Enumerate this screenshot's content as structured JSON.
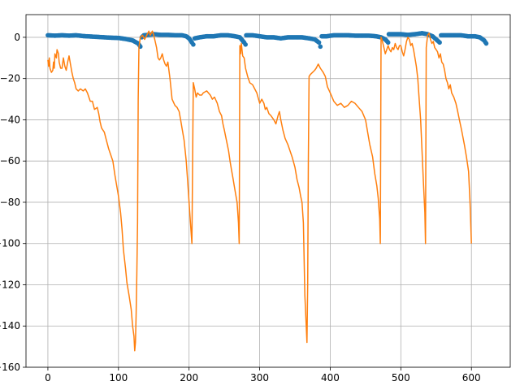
{
  "chart_data": {
    "type": "line",
    "title": "",
    "xlabel": "",
    "ylabel": "",
    "xlim": [
      -31,
      655
    ],
    "ylim": [
      -160,
      11
    ],
    "x_ticks": [
      0,
      100,
      200,
      300,
      400,
      500,
      600
    ],
    "y_ticks": [
      0,
      -20,
      -40,
      -60,
      -80,
      -100,
      -120,
      -140,
      -160
    ],
    "x_tick_labels": [
      "0",
      "100",
      "200",
      "300",
      "400",
      "500",
      "600"
    ],
    "y_tick_labels": [
      "0",
      "−20",
      "−40",
      "−60",
      "−80",
      "−100",
      "−120",
      "−140",
      "−160"
    ],
    "grid": true,
    "legend": "none",
    "series": [
      {
        "color": "#1f77b4",
        "style": "markers",
        "points": [
          [
            0,
            1
          ],
          [
            10,
            0.8
          ],
          [
            20,
            1
          ],
          [
            30,
            0.8
          ],
          [
            40,
            1
          ],
          [
            50,
            0.6
          ],
          [
            60,
            0.4
          ],
          [
            70,
            0.2
          ],
          [
            80,
            0
          ],
          [
            90,
            -0.2
          ],
          [
            100,
            -0.3
          ],
          [
            110,
            -0.8
          ],
          [
            120,
            -1.5
          ],
          [
            128,
            -3
          ],
          [
            131,
            -4.5
          ],
          [
            133,
            0
          ],
          [
            136,
            1
          ],
          [
            142,
            1.2
          ],
          [
            150,
            1.5
          ],
          [
            160,
            1.2
          ],
          [
            170,
            1.2
          ],
          [
            180,
            1
          ],
          [
            190,
            1
          ],
          [
            196,
            0.5
          ],
          [
            200,
            -0.5
          ],
          [
            204,
            -2.5
          ],
          [
            206,
            -3.5
          ],
          [
            208,
            -0.5
          ],
          [
            215,
            0
          ],
          [
            225,
            0.5
          ],
          [
            235,
            0.5
          ],
          [
            245,
            1
          ],
          [
            255,
            1
          ],
          [
            265,
            0.5
          ],
          [
            272,
            0
          ],
          [
            278,
            -2.5
          ],
          [
            280,
            -3.5
          ],
          [
            281,
            1
          ],
          [
            290,
            1
          ],
          [
            300,
            0.5
          ],
          [
            310,
            0
          ],
          [
            320,
            0
          ],
          [
            330,
            -0.5
          ],
          [
            340,
            0
          ],
          [
            350,
            0
          ],
          [
            360,
            0
          ],
          [
            370,
            -0.5
          ],
          [
            378,
            -1
          ],
          [
            384,
            -2.5
          ],
          [
            386,
            -4.5
          ],
          [
            388,
            0.5
          ],
          [
            395,
            0.5
          ],
          [
            405,
            1
          ],
          [
            415,
            1
          ],
          [
            425,
            1
          ],
          [
            435,
            0.8
          ],
          [
            445,
            0.8
          ],
          [
            455,
            0.8
          ],
          [
            465,
            0.5
          ],
          [
            472,
            0
          ],
          [
            478,
            -1
          ],
          [
            482,
            -2.5
          ],
          [
            483,
            1.5
          ],
          [
            490,
            1.5
          ],
          [
            500,
            1.5
          ],
          [
            510,
            1.2
          ],
          [
            520,
            1.5
          ],
          [
            530,
            2
          ],
          [
            538,
            1.5
          ],
          [
            545,
            0.5
          ],
          [
            550,
            -1
          ],
          [
            555,
            -2.5
          ],
          [
            557,
            1
          ],
          [
            565,
            1
          ],
          [
            575,
            1
          ],
          [
            585,
            1
          ],
          [
            595,
            0.5
          ],
          [
            605,
            0.5
          ],
          [
            612,
            0
          ],
          [
            618,
            -1.5
          ],
          [
            621,
            -3
          ]
        ]
      },
      {
        "color": "#ff7f0e",
        "style": "line",
        "points": [
          [
            0,
            -11
          ],
          [
            1,
            -14
          ],
          [
            2,
            -10
          ],
          [
            3,
            -15
          ],
          [
            5,
            -17
          ],
          [
            7,
            -16
          ],
          [
            8,
            -12
          ],
          [
            9,
            -15
          ],
          [
            10,
            -8
          ],
          [
            12,
            -10
          ],
          [
            13,
            -6
          ],
          [
            15,
            -8
          ],
          [
            16,
            -12
          ],
          [
            18,
            -15
          ],
          [
            20,
            -15
          ],
          [
            22,
            -10
          ],
          [
            24,
            -14
          ],
          [
            26,
            -16
          ],
          [
            28,
            -12
          ],
          [
            30,
            -9
          ],
          [
            32,
            -13
          ],
          [
            34,
            -17
          ],
          [
            36,
            -20
          ],
          [
            38,
            -22
          ],
          [
            40,
            -25
          ],
          [
            43,
            -26
          ],
          [
            46,
            -25
          ],
          [
            50,
            -26
          ],
          [
            53,
            -25
          ],
          [
            56,
            -27
          ],
          [
            60,
            -31
          ],
          [
            63,
            -31
          ],
          [
            66,
            -35
          ],
          [
            70,
            -34
          ],
          [
            72,
            -37
          ],
          [
            74,
            -41
          ],
          [
            76,
            -44
          ],
          [
            80,
            -46
          ],
          [
            83,
            -50
          ],
          [
            86,
            -54
          ],
          [
            89,
            -57
          ],
          [
            92,
            -60
          ],
          [
            95,
            -67
          ],
          [
            98,
            -73
          ],
          [
            100,
            -77
          ],
          [
            103,
            -85
          ],
          [
            105,
            -93
          ],
          [
            107,
            -103
          ],
          [
            110,
            -112
          ],
          [
            112,
            -119
          ],
          [
            115,
            -125
          ],
          [
            118,
            -132
          ],
          [
            120,
            -140
          ],
          [
            122,
            -145
          ],
          [
            123,
            -152
          ],
          [
            124,
            -148
          ],
          [
            125,
            -135
          ],
          [
            126,
            -115
          ],
          [
            127,
            -90
          ],
          [
            128,
            -30
          ],
          [
            129,
            -5
          ],
          [
            131,
            0
          ],
          [
            134,
            1
          ],
          [
            137,
            -1
          ],
          [
            140,
            1
          ],
          [
            143,
            3
          ],
          [
            145,
            1
          ],
          [
            148,
            3
          ],
          [
            150,
            1
          ],
          [
            152,
            -2
          ],
          [
            154,
            -5
          ],
          [
            156,
            -10
          ],
          [
            158,
            -11
          ],
          [
            160,
            -10
          ],
          [
            162,
            -8
          ],
          [
            164,
            -11
          ],
          [
            166,
            -13
          ],
          [
            168,
            -14
          ],
          [
            170,
            -12
          ],
          [
            173,
            -20
          ],
          [
            176,
            -30
          ],
          [
            180,
            -33
          ],
          [
            183,
            -34
          ],
          [
            186,
            -36
          ],
          [
            188,
            -40
          ],
          [
            190,
            -44
          ],
          [
            193,
            -50
          ],
          [
            196,
            -60
          ],
          [
            198,
            -70
          ],
          [
            200,
            -80
          ],
          [
            202,
            -90
          ],
          [
            204,
            -100
          ],
          [
            206,
            -22
          ],
          [
            208,
            -25
          ],
          [
            210,
            -29
          ],
          [
            212,
            -27
          ],
          [
            215,
            -28
          ],
          [
            218,
            -28
          ],
          [
            220,
            -27
          ],
          [
            225,
            -26
          ],
          [
            230,
            -28
          ],
          [
            233,
            -30
          ],
          [
            236,
            -29
          ],
          [
            240,
            -32
          ],
          [
            243,
            -36
          ],
          [
            246,
            -38
          ],
          [
            248,
            -42
          ],
          [
            250,
            -45
          ],
          [
            253,
            -50
          ],
          [
            256,
            -55
          ],
          [
            258,
            -60
          ],
          [
            260,
            -64
          ],
          [
            262,
            -68
          ],
          [
            264,
            -72
          ],
          [
            266,
            -76
          ],
          [
            268,
            -80
          ],
          [
            270,
            -90
          ],
          [
            271,
            -100
          ],
          [
            272,
            -4
          ],
          [
            273,
            -8
          ],
          [
            274,
            -3
          ],
          [
            276,
            -9
          ],
          [
            278,
            -10
          ],
          [
            280,
            -15
          ],
          [
            283,
            -19
          ],
          [
            286,
            -22
          ],
          [
            290,
            -23
          ],
          [
            293,
            -25
          ],
          [
            296,
            -27
          ],
          [
            300,
            -32
          ],
          [
            303,
            -30
          ],
          [
            306,
            -32
          ],
          [
            308,
            -35
          ],
          [
            310,
            -34
          ],
          [
            313,
            -37
          ],
          [
            316,
            -38
          ],
          [
            320,
            -40
          ],
          [
            323,
            -42
          ],
          [
            326,
            -38
          ],
          [
            328,
            -36
          ],
          [
            330,
            -40
          ],
          [
            333,
            -45
          ],
          [
            336,
            -49
          ],
          [
            340,
            -52
          ],
          [
            343,
            -55
          ],
          [
            346,
            -58
          ],
          [
            350,
            -63
          ],
          [
            353,
            -69
          ],
          [
            356,
            -73
          ],
          [
            358,
            -77
          ],
          [
            360,
            -80
          ],
          [
            362,
            -90
          ],
          [
            364,
            -125
          ],
          [
            366,
            -140
          ],
          [
            367,
            -148
          ],
          [
            368,
            -120
          ],
          [
            369,
            -60
          ],
          [
            370,
            -19
          ],
          [
            372,
            -18
          ],
          [
            375,
            -17
          ],
          [
            378,
            -16
          ],
          [
            380,
            -15
          ],
          [
            383,
            -13
          ],
          [
            386,
            -15
          ],
          [
            390,
            -17
          ],
          [
            393,
            -19
          ],
          [
            396,
            -24
          ],
          [
            400,
            -27
          ],
          [
            405,
            -31
          ],
          [
            410,
            -33
          ],
          [
            415,
            -32
          ],
          [
            420,
            -34
          ],
          [
            425,
            -33
          ],
          [
            430,
            -31
          ],
          [
            435,
            -32
          ],
          [
            440,
            -34
          ],
          [
            445,
            -36
          ],
          [
            450,
            -40
          ],
          [
            453,
            -46
          ],
          [
            456,
            -52
          ],
          [
            460,
            -58
          ],
          [
            463,
            -66
          ],
          [
            466,
            -72
          ],
          [
            468,
            -78
          ],
          [
            470,
            -88
          ],
          [
            471,
            -100
          ],
          [
            472,
            0
          ],
          [
            474,
            -2
          ],
          [
            476,
            -5
          ],
          [
            478,
            -8
          ],
          [
            480,
            -6
          ],
          [
            482,
            -4
          ],
          [
            484,
            -6
          ],
          [
            486,
            -7
          ],
          [
            488,
            -5
          ],
          [
            490,
            -6
          ],
          [
            492,
            -3
          ],
          [
            494,
            -5
          ],
          [
            496,
            -6
          ],
          [
            498,
            -4
          ],
          [
            500,
            -4
          ],
          [
            502,
            -7
          ],
          [
            504,
            -9
          ],
          [
            506,
            -6
          ],
          [
            508,
            -2
          ],
          [
            510,
            0
          ],
          [
            512,
            -1
          ],
          [
            514,
            -4
          ],
          [
            516,
            -3
          ],
          [
            518,
            -6
          ],
          [
            520,
            -10
          ],
          [
            522,
            -14
          ],
          [
            524,
            -20
          ],
          [
            526,
            -30
          ],
          [
            528,
            -40
          ],
          [
            530,
            -55
          ],
          [
            532,
            -70
          ],
          [
            534,
            -85
          ],
          [
            535,
            -100
          ],
          [
            536,
            -5
          ],
          [
            538,
            1
          ],
          [
            540,
            2
          ],
          [
            542,
            -1
          ],
          [
            544,
            -3
          ],
          [
            546,
            -2
          ],
          [
            548,
            -5
          ],
          [
            550,
            -6
          ],
          [
            552,
            -7
          ],
          [
            554,
            -10
          ],
          [
            556,
            -8
          ],
          [
            558,
            -12
          ],
          [
            560,
            -13
          ],
          [
            562,
            -16
          ],
          [
            564,
            -20
          ],
          [
            566,
            -22
          ],
          [
            568,
            -25
          ],
          [
            570,
            -23
          ],
          [
            572,
            -27
          ],
          [
            575,
            -29
          ],
          [
            578,
            -32
          ],
          [
            580,
            -35
          ],
          [
            583,
            -40
          ],
          [
            586,
            -45
          ],
          [
            590,
            -52
          ],
          [
            593,
            -58
          ],
          [
            596,
            -65
          ],
          [
            598,
            -80
          ],
          [
            600,
            -100
          ]
        ]
      }
    ]
  }
}
